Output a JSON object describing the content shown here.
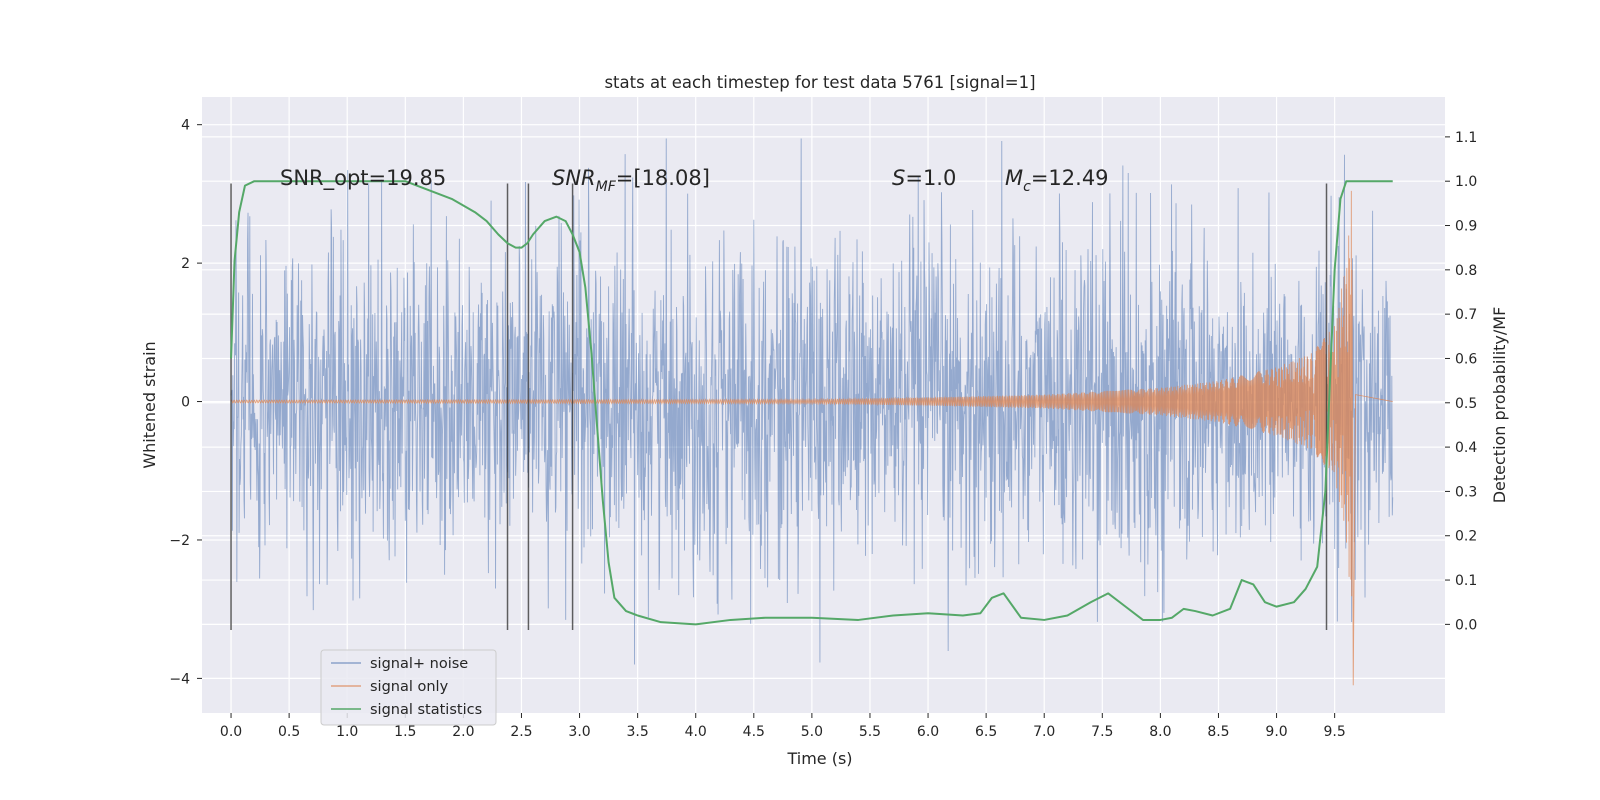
{
  "chart_data": {
    "type": "line",
    "title": "stats at each timestep for test data 5761 [signal=1]",
    "xlabel": "Time (s)",
    "ylabel": "Whitened strain",
    "y2label": "Detection probability/MF",
    "xlim": [
      -0.25,
      10.45
    ],
    "ylim": [
      -4.5,
      4.4
    ],
    "y2lim": [
      -0.2,
      1.19
    ],
    "x_ticks": [
      "0.0",
      "0.5",
      "1.0",
      "1.5",
      "2.0",
      "2.5",
      "3.0",
      "3.5",
      "4.0",
      "4.5",
      "5.0",
      "5.5",
      "6.0",
      "6.5",
      "7.0",
      "7.5",
      "8.0",
      "8.5",
      "9.0",
      "9.5"
    ],
    "x_tick_values": [
      0.0,
      0.5,
      1.0,
      1.5,
      2.0,
      2.5,
      3.0,
      3.5,
      4.0,
      4.5,
      5.0,
      5.5,
      6.0,
      6.5,
      7.0,
      7.5,
      8.0,
      8.5,
      9.0,
      9.5
    ],
    "y_ticks": [
      "4",
      "2",
      "0",
      "−2",
      "−4"
    ],
    "y_tick_values": [
      4,
      2,
      0,
      -2,
      -4
    ],
    "y2_ticks": [
      "1.1",
      "1.0",
      "0.9",
      "0.8",
      "0.7",
      "0.6",
      "0.5",
      "0.4",
      "0.3",
      "0.2",
      "0.1",
      "0.0"
    ],
    "y2_tick_values": [
      1.1,
      1.0,
      0.9,
      0.8,
      0.7,
      0.6,
      0.5,
      0.4,
      0.3,
      0.2,
      0.1,
      0.0
    ],
    "grid": true,
    "legend_position": "lower-left",
    "annotations": {
      "snr_opt": "SNR_opt=19.85",
      "snr_mf_symbol": "SNR",
      "snr_mf_sub": "MF",
      "snr_mf_rest": "=[18.08]",
      "s_symbol": "S",
      "s_rest": "=1.0",
      "mc_symbol": "M",
      "mc_sub": "c",
      "mc_rest": "=12.49"
    },
    "vertical_markers_x": [
      0.0,
      2.38,
      2.56,
      2.94,
      9.43
    ],
    "vertical_marker_range": [
      -3.3,
      3.15
    ],
    "series": [
      {
        "name": "signal+ noise",
        "color": "#4c72b0",
        "axis": "left",
        "x_range": [
          0.0,
          10.0
        ],
        "typical_amplitude": 1.2,
        "max_amplitude": 3.8
      },
      {
        "name": "signal only",
        "color": "#dd8452",
        "axis": "left",
        "envelope": {
          "t": [
            0.0,
            5.0,
            6.0,
            7.0,
            8.0,
            8.5,
            9.0,
            9.3,
            9.5,
            9.6,
            9.65
          ],
          "amp": [
            0.02,
            0.03,
            0.06,
            0.1,
            0.2,
            0.3,
            0.5,
            0.7,
            1.1,
            2.0,
            3.2
          ]
        },
        "merger_time": 9.65
      },
      {
        "name": "signal statistics",
        "color": "#55a868",
        "axis": "right",
        "x": [
          0.0,
          0.03,
          0.07,
          0.12,
          0.2,
          0.4,
          0.8,
          1.2,
          1.5,
          1.7,
          1.9,
          2.1,
          2.2,
          2.3,
          2.38,
          2.45,
          2.5,
          2.55,
          2.6,
          2.7,
          2.8,
          2.88,
          2.94,
          3.0,
          3.05,
          3.1,
          3.15,
          3.2,
          3.25,
          3.3,
          3.4,
          3.5,
          3.7,
          4.0,
          4.3,
          4.6,
          5.0,
          5.4,
          5.7,
          6.0,
          6.3,
          6.45,
          6.55,
          6.65,
          6.8,
          7.0,
          7.2,
          7.4,
          7.55,
          7.7,
          7.85,
          8.0,
          8.1,
          8.2,
          8.3,
          8.45,
          8.6,
          8.7,
          8.8,
          8.9,
          9.0,
          9.15,
          9.25,
          9.35,
          9.42,
          9.46,
          9.5,
          9.55,
          9.6,
          9.7,
          9.8,
          10.0
        ],
        "y": [
          0.6,
          0.82,
          0.93,
          0.99,
          1.0,
          1.0,
          1.0,
          1.0,
          1.0,
          0.98,
          0.96,
          0.93,
          0.91,
          0.88,
          0.86,
          0.85,
          0.85,
          0.86,
          0.88,
          0.91,
          0.92,
          0.91,
          0.88,
          0.84,
          0.76,
          0.62,
          0.45,
          0.28,
          0.14,
          0.06,
          0.03,
          0.02,
          0.005,
          0.0,
          0.01,
          0.015,
          0.015,
          0.01,
          0.02,
          0.025,
          0.02,
          0.025,
          0.06,
          0.07,
          0.015,
          0.01,
          0.02,
          0.05,
          0.07,
          0.04,
          0.01,
          0.01,
          0.015,
          0.035,
          0.03,
          0.02,
          0.035,
          0.1,
          0.09,
          0.05,
          0.04,
          0.05,
          0.08,
          0.13,
          0.3,
          0.55,
          0.8,
          0.96,
          1.0,
          1.0,
          1.0,
          1.0
        ]
      }
    ]
  }
}
